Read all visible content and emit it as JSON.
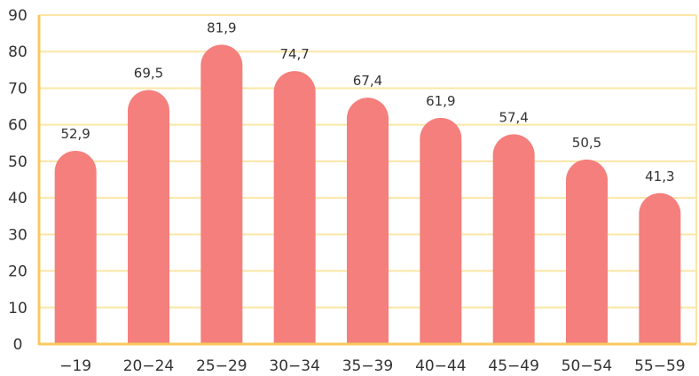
{
  "chart_data": {
    "type": "bar",
    "categories": [
      "−19",
      "20−24",
      "25−29",
      "30−34",
      "35−39",
      "40−44",
      "45−49",
      "50−54",
      "55−59"
    ],
    "values": [
      52.9,
      69.5,
      81.9,
      74.7,
      67.4,
      61.9,
      57.4,
      50.5,
      41.3
    ],
    "value_labels": [
      "52,9",
      "69,5",
      "81,9",
      "74,7",
      "67,4",
      "61,9",
      "57,4",
      "50,5",
      "41,3"
    ],
    "title": "",
    "xlabel": "",
    "ylabel": "",
    "ylim": [
      0,
      90
    ],
    "yticks": [
      "0",
      "10",
      "20",
      "30",
      "40",
      "50",
      "60",
      "70",
      "80",
      "90"
    ],
    "grid": true,
    "legend": "none",
    "colors": {
      "bar": "#f47f7c",
      "grid": "#fbe6a6",
      "axis": "#f9c95c"
    }
  }
}
